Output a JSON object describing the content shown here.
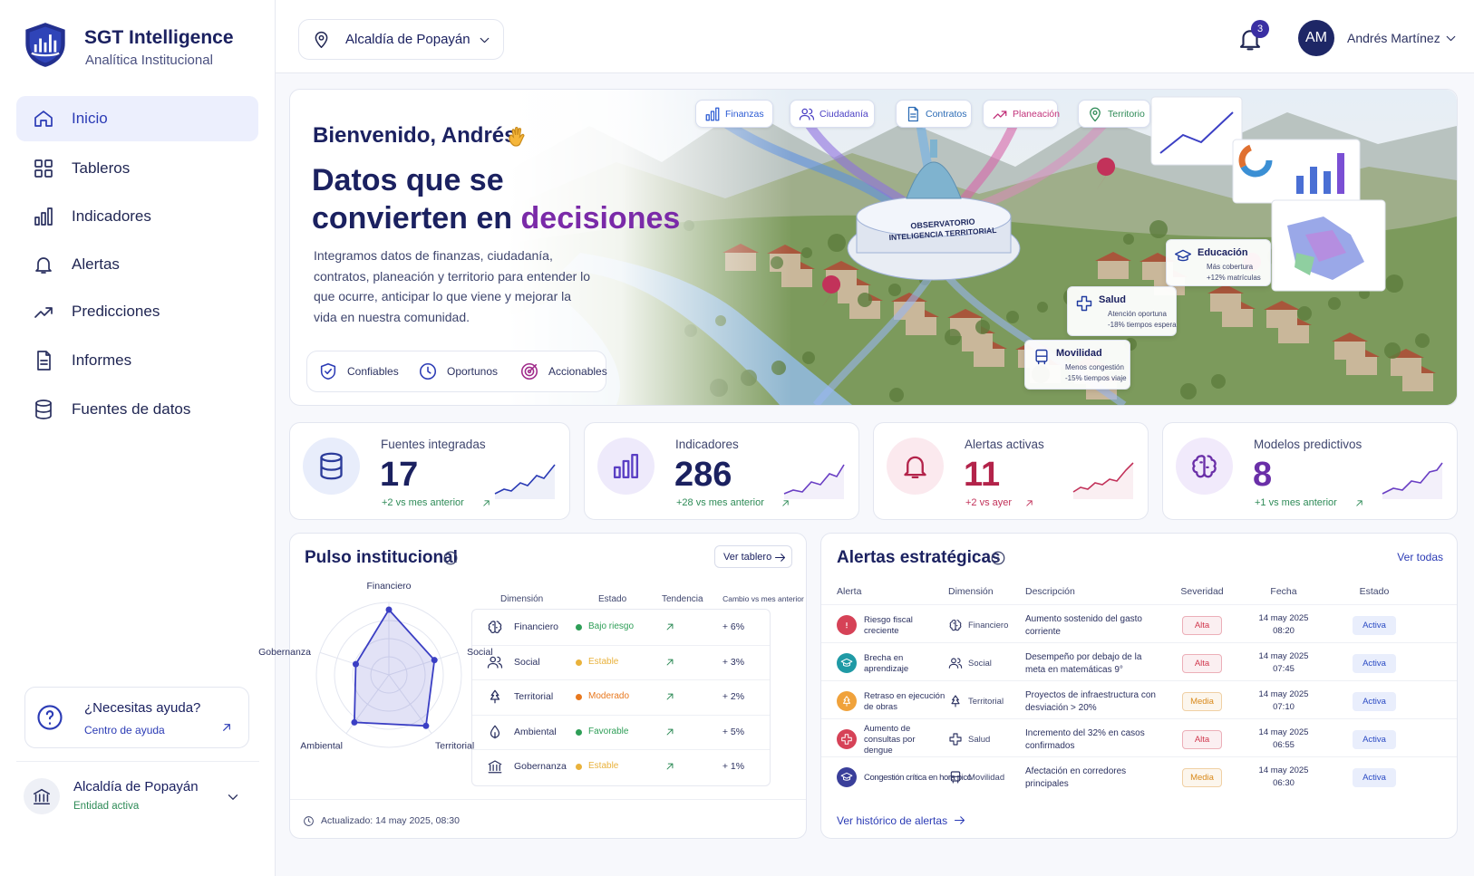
{
  "sidebar": {
    "brand": {
      "title": "SGT Intelligence",
      "subtitle": "Analítica Institucional"
    },
    "nav": [
      "Inicio",
      "Tableros",
      "Indicadores",
      "Alertas",
      "Predicciones",
      "Informes",
      "Fuentes de datos"
    ],
    "help": {
      "title": "¿Necesitas ayuda?",
      "link": "Centro de ayuda"
    },
    "entity": {
      "name": "Alcaldía de Popayán",
      "status": "Entidad activa"
    }
  },
  "header": {
    "location": "Alcaldía de Popayán",
    "notifications": 3,
    "user": {
      "initials": "AM",
      "name": "Andrés Martínez"
    }
  },
  "hero": {
    "greeting": "Bienvenido, Andrés",
    "title_line1": "Datos que se",
    "title_line2": "convierten en",
    "title_highlight": "decisiones",
    "description": "Integramos datos de finanzas, ciudadanía, contratos, planeación y territorio para entender lo que ocurre, anticipar lo que viene y mejorar la vida en nuestra comunidad.",
    "badges": [
      "Confiables",
      "Oportunos",
      "Accionables"
    ],
    "chips": [
      "Finanzas",
      "Ciudadanía",
      "Contratos",
      "Planeación",
      "Territorio"
    ],
    "building": [
      "OBSERVATORIO",
      "INTELIGENCIA TERRITORIAL"
    ],
    "callouts": [
      {
        "title": "Educación",
        "line1": "Más cobertura",
        "line2": "+12% matrículas"
      },
      {
        "title": "Salud",
        "line1": "Atención oportuna",
        "line2": "-18% tiempos espera"
      },
      {
        "title": "Movilidad",
        "line1": "Menos congestión",
        "line2": "-15% tiempos viaje"
      }
    ]
  },
  "kpis": [
    {
      "label": "Fuentes integradas",
      "value": 17,
      "change": "+2 vs mes anterior",
      "color": "#1b2160",
      "change_color": "#2e8b57"
    },
    {
      "label": "Indicadores",
      "value": 286,
      "change": "+28 vs mes anterior",
      "color": "#1b2160",
      "change_color": "#2e8b57"
    },
    {
      "label": "Alertas activas",
      "value": 11,
      "change": "+2 vs ayer",
      "color": "#b3234a",
      "change_color": "#c2325a"
    },
    {
      "label": "Modelos predictivos",
      "value": 8,
      "change": "+1 vs mes anterior",
      "color": "#6a2fa8",
      "change_color": "#2e8b57"
    }
  ],
  "pulse": {
    "title": "Pulso institucional",
    "button": "Ver tablero",
    "radar": {
      "axes": [
        "Financiero",
        "Social",
        "Territorial",
        "Ambiental",
        "Gobernanza"
      ],
      "values": [
        90,
        66,
        87,
        81,
        48
      ],
      "rlim": [
        0,
        100
      ],
      "color": "#3b3fc4"
    },
    "columns": [
      "Dimensión",
      "Estado",
      "Tendencia",
      "Cambio vs mes anterior"
    ],
    "rows": [
      {
        "dimension": "Financiero",
        "status": "Bajo riesgo",
        "status_color": "#2e9e57",
        "change": "+ 6%"
      },
      {
        "dimension": "Social",
        "status": "Estable",
        "status_color": "#e9b23c",
        "change": "+ 3%"
      },
      {
        "dimension": "Territorial",
        "status": "Moderado",
        "status_color": "#e8781e",
        "change": "+ 2%"
      },
      {
        "dimension": "Ambiental",
        "status": "Favorable",
        "status_color": "#2e9e57",
        "change": "+ 5%"
      },
      {
        "dimension": "Gobernanza",
        "status": "Estable",
        "status_color": "#e9b23c",
        "change": "+ 1%"
      }
    ],
    "updated": "Actualizado: 14 may 2025, 08:30"
  },
  "alerts": {
    "title": "Alertas estratégicas",
    "link": "Ver todas",
    "columns": [
      "Alerta",
      "Dimensión",
      "Descripción",
      "Severidad",
      "Fecha",
      "Estado"
    ],
    "rows": [
      {
        "alert": "Riesgo fiscal creciente",
        "icon_color": "#d64257",
        "dimension": "Financiero",
        "description": "Aumento sostenido del gasto corriente",
        "severity": "Alta",
        "severity_color": "#d0384e",
        "date": "14 may 2025",
        "time": "08:20",
        "status": "Activa"
      },
      {
        "alert": "Brecha en aprendizaje",
        "icon_color": "#1f9aa5",
        "dimension": "Social",
        "description": "Desempeño por debajo de la meta en matemáticas 9°",
        "severity": "Alta",
        "severity_color": "#d0384e",
        "date": "14 may 2025",
        "time": "07:45",
        "status": "Activa"
      },
      {
        "alert": "Retraso en ejecución de obras",
        "icon_color": "#f0a23b",
        "dimension": "Territorial",
        "description": "Proyectos de infraestructura con desviación > 20%",
        "severity": "Media",
        "severity_color": "#d98a1c",
        "date": "14 may 2025",
        "time": "07:10",
        "status": "Activa"
      },
      {
        "alert": "Aumento de consultas por dengue",
        "icon_color": "#d64257",
        "dimension": "Salud",
        "description": "Incremento del 32% en casos confirmados",
        "severity": "Alta",
        "severity_color": "#d0384e",
        "date": "14 may 2025",
        "time": "06:55",
        "status": "Activa"
      },
      {
        "alert": "Congestión crítica en hora pico",
        "icon_color": "#3a3f9a",
        "dimension": "Movilidad",
        "description": "Afectación en corredores principales",
        "severity": "Media",
        "severity_color": "#d98a1c",
        "date": "14 may 2025",
        "time": "06:30",
        "status": "Activa"
      }
    ],
    "footer": "Ver histórico de alertas"
  }
}
